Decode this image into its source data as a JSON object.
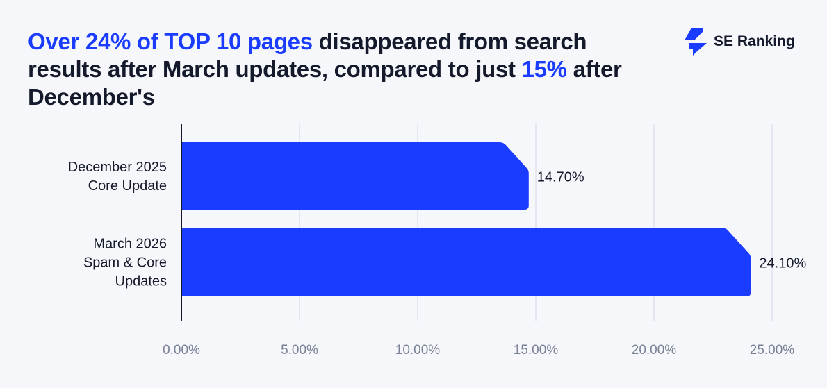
{
  "title": {
    "parts": [
      {
        "text": "Over 24% of TOP 10 pages",
        "highlight": true
      },
      {
        "text": " disappeared from search results after March updates, compared to just ",
        "highlight": false
      },
      {
        "text": "15%",
        "highlight": true
      },
      {
        "text": " after December's",
        "highlight": false
      }
    ]
  },
  "brand": {
    "name": "SE Ranking"
  },
  "colors": {
    "accent": "#1a3cff",
    "text": "#141a2b",
    "tick": "#7a8296",
    "grid": "#dde1ee",
    "background": "#f6f7fb"
  },
  "chart_data": {
    "type": "bar",
    "orientation": "horizontal",
    "categories": [
      [
        "December 2025",
        "Core Update"
      ],
      [
        "March 2026",
        "Spam & Core",
        "Updates"
      ]
    ],
    "values": [
      14.7,
      24.1
    ],
    "data_labels": [
      "14.70%",
      "24.10%"
    ],
    "xlim": [
      0,
      25
    ],
    "xticks": [
      0,
      5,
      10,
      15,
      20,
      25
    ],
    "xtick_labels": [
      "0.00%",
      "5.00%",
      "10.00%",
      "15.00%",
      "20.00%",
      "25.00%"
    ],
    "grid": true,
    "legend": "none"
  }
}
